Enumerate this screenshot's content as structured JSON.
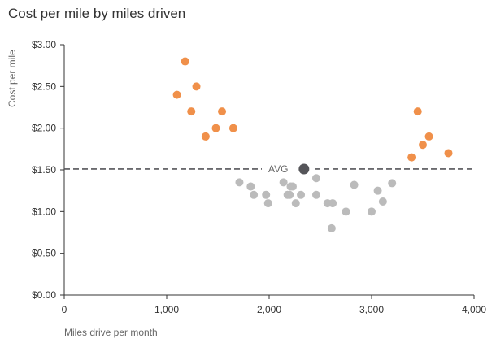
{
  "chart_data": {
    "type": "scatter",
    "title": "Cost per mile by miles driven",
    "xlabel": "Miles drive per month",
    "ylabel": "Cost per mile",
    "xlim": [
      0,
      4000
    ],
    "ylim": [
      0,
      3.0
    ],
    "x_ticks": [
      0,
      1000,
      2000,
      3000,
      4000
    ],
    "x_tick_labels": [
      "0",
      "1,000",
      "2,000",
      "3,000",
      "4,000"
    ],
    "y_ticks": [
      0,
      0.5,
      1.0,
      1.5,
      2.0,
      2.5,
      3.0
    ],
    "y_tick_labels": [
      "$0.00",
      "$0.50",
      "$1.00",
      "$1.50",
      "$2.00",
      "$2.50",
      "$3.00"
    ],
    "grid": false,
    "colors": {
      "highlight": "#f0904a",
      "base": "#bbbbbb",
      "avg": "#555559"
    },
    "average": {
      "label": "AVG",
      "x": 2340,
      "y": 1.51
    },
    "series": [
      {
        "color": "#f0904a",
        "points": [
          {
            "x": 1100,
            "y": 2.4
          },
          {
            "x": 1180,
            "y": 2.8
          },
          {
            "x": 1240,
            "y": 2.2
          },
          {
            "x": 1290,
            "y": 2.5
          },
          {
            "x": 1380,
            "y": 1.9
          },
          {
            "x": 1480,
            "y": 2.0
          },
          {
            "x": 1540,
            "y": 2.2
          },
          {
            "x": 1650,
            "y": 2.0
          },
          {
            "x": 3390,
            "y": 1.65
          },
          {
            "x": 3450,
            "y": 2.2
          },
          {
            "x": 3500,
            "y": 1.8
          },
          {
            "x": 3560,
            "y": 1.9
          },
          {
            "x": 3750,
            "y": 1.7
          }
        ]
      },
      {
        "color": "#bbbbbb",
        "points": [
          {
            "x": 1710,
            "y": 1.35
          },
          {
            "x": 1820,
            "y": 1.3
          },
          {
            "x": 1850,
            "y": 1.2
          },
          {
            "x": 1970,
            "y": 1.2
          },
          {
            "x": 1990,
            "y": 1.1
          },
          {
            "x": 2140,
            "y": 1.35
          },
          {
            "x": 2180,
            "y": 1.2
          },
          {
            "x": 2200,
            "y": 1.2
          },
          {
            "x": 2210,
            "y": 1.3
          },
          {
            "x": 2230,
            "y": 1.3
          },
          {
            "x": 2260,
            "y": 1.1
          },
          {
            "x": 2310,
            "y": 1.2
          },
          {
            "x": 2460,
            "y": 1.4
          },
          {
            "x": 2460,
            "y": 1.2
          },
          {
            "x": 2570,
            "y": 1.1
          },
          {
            "x": 2610,
            "y": 0.8
          },
          {
            "x": 2620,
            "y": 1.1
          },
          {
            "x": 2750,
            "y": 1.0
          },
          {
            "x": 2830,
            "y": 1.32
          },
          {
            "x": 3000,
            "y": 1.0
          },
          {
            "x": 3060,
            "y": 1.25
          },
          {
            "x": 3110,
            "y": 1.12
          },
          {
            "x": 3200,
            "y": 1.34
          }
        ]
      }
    ]
  }
}
